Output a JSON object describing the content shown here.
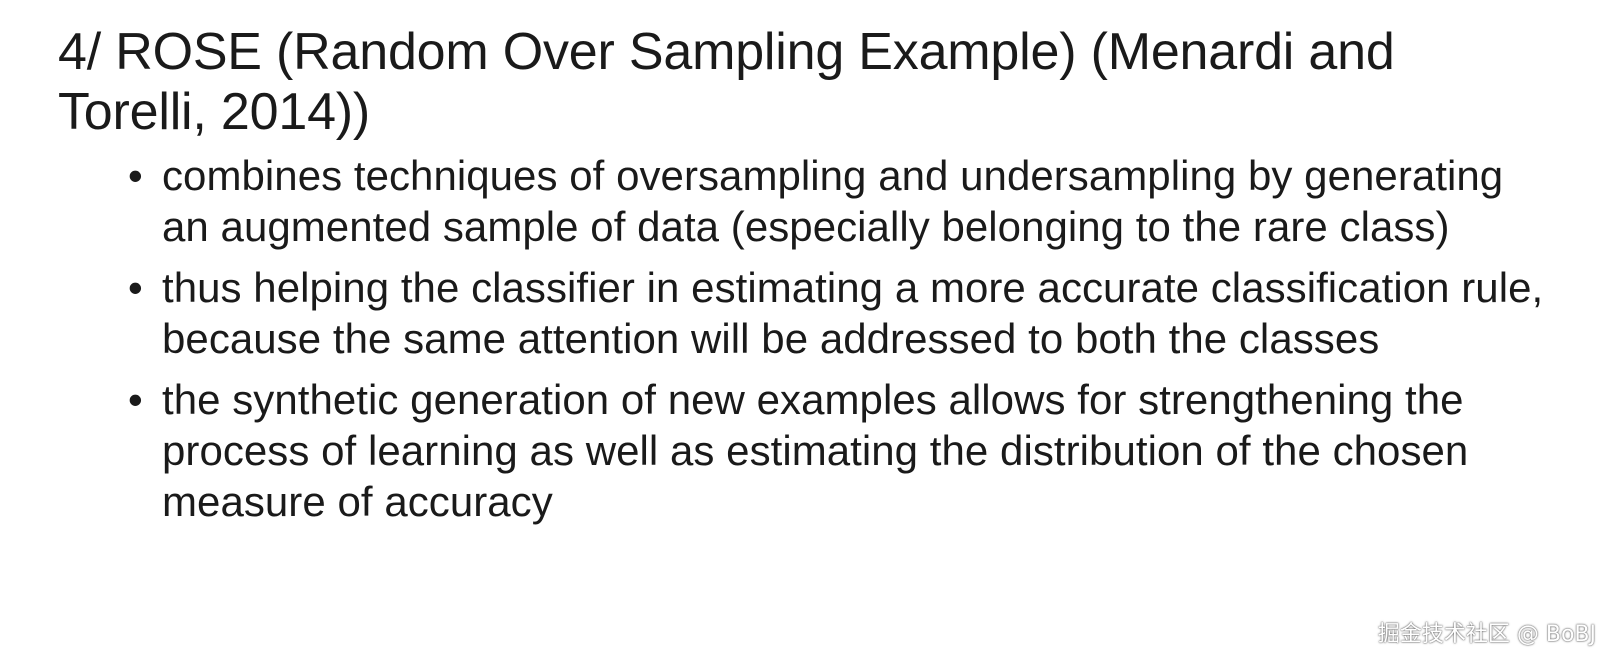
{
  "slide": {
    "title": "4/ ROSE (Random Over Sampling Example) (Menardi and Torelli, 2014))",
    "bullet_symbol": "•",
    "bullets": [
      {
        "text": "combines techniques of oversampling and undersampling by generating an augmented sample of data (especially belonging to the rare class)"
      },
      {
        "text": "thus helping the classifier in estimating a more accurate classification rule, because the same attention will be addressed to both the classes"
      },
      {
        "text": "the synthetic generation of new examples allows for strengthening the process of learning as well as estimating the distribution of the chosen measure of accuracy"
      }
    ]
  },
  "watermark": {
    "text": "掘金技术社区 @ BoBJ"
  }
}
